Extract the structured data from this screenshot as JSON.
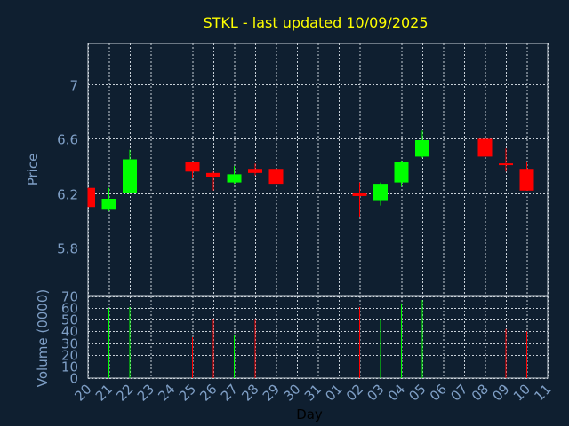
{
  "chart_data": {
    "type": "candlestick",
    "title": "STKL - last updated 10/09/2025",
    "xlabel": "Day",
    "colors": {
      "background": "#0f1f30",
      "up": "#00ff00",
      "down": "#ff0000",
      "title": "#ffff00",
      "axis_text": "#7f9fc6",
      "grid": "#c8d0d8"
    },
    "x_ticks": [
      "20",
      "21",
      "22",
      "23",
      "24",
      "25",
      "26",
      "27",
      "28",
      "29",
      "30",
      "31",
      "01",
      "02",
      "03",
      "04",
      "05",
      "06",
      "07",
      "08",
      "09",
      "10",
      "11"
    ],
    "price_panel": {
      "ylabel": "Price",
      "ylim": [
        5.45,
        7.3
      ],
      "yticks": [
        5.8,
        6.2,
        6.6,
        7
      ],
      "ytick_labels": [
        "5.8",
        "6.2",
        "6.6",
        "7"
      ]
    },
    "volume_panel": {
      "ylabel": "Volume (0000)",
      "ylim": [
        0,
        70
      ],
      "yticks": [
        0,
        10,
        20,
        30,
        40,
        50,
        60,
        70
      ],
      "ytick_labels": [
        "0",
        "10",
        "20",
        "30",
        "40",
        "50",
        "60",
        "70"
      ]
    },
    "series": [
      {
        "day": "20",
        "open": 6.24,
        "high": 6.24,
        "low": 6.1,
        "close": 6.1,
        "volume": 0
      },
      {
        "day": "21",
        "open": 6.08,
        "high": 6.24,
        "low": 6.07,
        "close": 6.16,
        "volume": 60
      },
      {
        "day": "22",
        "open": 6.2,
        "high": 6.52,
        "low": 6.2,
        "close": 6.45,
        "volume": 61
      },
      {
        "day": "25",
        "open": 6.43,
        "high": 6.43,
        "low": 6.31,
        "close": 6.36,
        "volume": 35
      },
      {
        "day": "26",
        "open": 6.35,
        "high": 6.36,
        "low": 6.22,
        "close": 6.32,
        "volume": 51
      },
      {
        "day": "27",
        "open": 6.28,
        "high": 6.4,
        "low": 6.27,
        "close": 6.34,
        "volume": 37
      },
      {
        "day": "28",
        "open": 6.38,
        "high": 6.42,
        "low": 6.33,
        "close": 6.35,
        "volume": 50
      },
      {
        "day": "29",
        "open": 6.38,
        "high": 6.41,
        "low": 6.25,
        "close": 6.27,
        "volume": 41
      },
      {
        "day": "02",
        "open": 6.2,
        "high": 6.28,
        "low": 6.03,
        "close": 6.18,
        "volume": 61
      },
      {
        "day": "03",
        "open": 6.15,
        "high": 6.28,
        "low": 6.11,
        "close": 6.27,
        "volume": 50
      },
      {
        "day": "04",
        "open": 6.28,
        "high": 6.44,
        "low": 6.25,
        "close": 6.43,
        "volume": 64
      },
      {
        "day": "05",
        "open": 6.47,
        "high": 6.66,
        "low": 6.46,
        "close": 6.59,
        "volume": 67
      },
      {
        "day": "08",
        "open": 6.6,
        "high": 6.6,
        "low": 6.27,
        "close": 6.47,
        "volume": 52
      },
      {
        "day": "09",
        "open": 6.42,
        "high": 6.53,
        "low": 6.36,
        "close": 6.41,
        "volume": 42
      },
      {
        "day": "10",
        "open": 6.38,
        "high": 6.43,
        "low": 6.22,
        "close": 6.22,
        "volume": 40
      }
    ]
  }
}
